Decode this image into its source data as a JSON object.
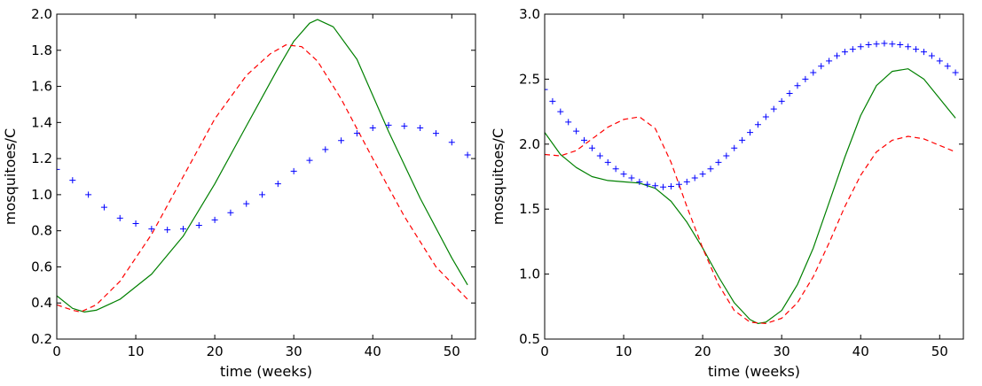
{
  "chart_data": [
    {
      "type": "line",
      "title": "",
      "xlabel": "time (weeks)",
      "ylabel": "mosquitoes/C",
      "xlim": [
        0,
        53
      ],
      "ylim": [
        0.2,
        2.0
      ],
      "xticks": [
        0,
        10,
        20,
        30,
        40,
        50
      ],
      "yticks": [
        0.2,
        0.4,
        0.6,
        0.8,
        1.0,
        1.2,
        1.4,
        1.6,
        1.8,
        2.0
      ],
      "xtick_labels": [
        "0",
        "10",
        "20",
        "30",
        "40",
        "50"
      ],
      "ytick_labels": [
        "0.2",
        "0.4",
        "0.6",
        "0.8",
        "1.0",
        "1.2",
        "1.4",
        "1.6",
        "1.8",
        "2.0"
      ],
      "series": [
        {
          "name": "solid",
          "style": "solid",
          "color": "#008000",
          "x": [
            0,
            2,
            3.5,
            5,
            8,
            12,
            16,
            20,
            24,
            28,
            30,
            32,
            33,
            35,
            38,
            42,
            46,
            50,
            52
          ],
          "y": [
            0.44,
            0.37,
            0.35,
            0.36,
            0.42,
            0.56,
            0.77,
            1.06,
            1.38,
            1.7,
            1.85,
            1.95,
            1.97,
            1.93,
            1.75,
            1.35,
            0.98,
            0.65,
            0.5
          ]
        },
        {
          "name": "dashed",
          "style": "dashed",
          "color": "#ff0000",
          "x": [
            0,
            2,
            3,
            5,
            8,
            12,
            16,
            20,
            24,
            27,
            29,
            31,
            33,
            36,
            40,
            44,
            48,
            52
          ],
          "y": [
            0.39,
            0.36,
            0.35,
            0.39,
            0.52,
            0.78,
            1.1,
            1.42,
            1.66,
            1.78,
            1.83,
            1.82,
            1.74,
            1.53,
            1.2,
            0.88,
            0.6,
            0.42
          ]
        },
        {
          "name": "plus markers",
          "style": "marker",
          "marker": "+",
          "color": "#0000ff",
          "x": [
            0,
            2,
            4,
            6,
            8,
            10,
            12,
            14,
            16,
            18,
            20,
            22,
            24,
            26,
            28,
            30,
            32,
            34,
            36,
            38,
            40,
            42,
            44,
            46,
            48,
            50,
            52
          ],
          "y": [
            1.14,
            1.08,
            1.0,
            0.93,
            0.87,
            0.84,
            0.81,
            0.805,
            0.81,
            0.83,
            0.86,
            0.9,
            0.95,
            1.0,
            1.06,
            1.13,
            1.19,
            1.25,
            1.3,
            1.34,
            1.37,
            1.385,
            1.38,
            1.37,
            1.34,
            1.29,
            1.22
          ]
        }
      ]
    },
    {
      "type": "line",
      "title": "",
      "xlabel": "time (weeks)",
      "ylabel": "mosquitoes/C",
      "xlim": [
        0,
        53
      ],
      "ylim": [
        0.5,
        3.0
      ],
      "xticks": [
        0,
        10,
        20,
        30,
        40,
        50
      ],
      "yticks": [
        0.5,
        1.0,
        1.5,
        2.0,
        2.5,
        3.0
      ],
      "xtick_labels": [
        "0",
        "10",
        "20",
        "30",
        "40",
        "50"
      ],
      "ytick_labels": [
        "0.5",
        "1.0",
        "1.5",
        "2.0",
        "2.5",
        "3.0"
      ],
      "series": [
        {
          "name": "solid",
          "style": "solid",
          "color": "#008000",
          "x": [
            0,
            2,
            4,
            6,
            8,
            10,
            12,
            14,
            16,
            18,
            20,
            22,
            24,
            26,
            27,
            28,
            30,
            32,
            34,
            36,
            38,
            40,
            42,
            44,
            46,
            48,
            50,
            52
          ],
          "y": [
            2.09,
            1.92,
            1.82,
            1.75,
            1.72,
            1.71,
            1.7,
            1.66,
            1.56,
            1.4,
            1.2,
            0.98,
            0.78,
            0.65,
            0.62,
            0.63,
            0.72,
            0.92,
            1.2,
            1.55,
            1.9,
            2.22,
            2.45,
            2.56,
            2.58,
            2.5,
            2.35,
            2.2
          ]
        },
        {
          "name": "dashed",
          "style": "dashed",
          "color": "#ff0000",
          "x": [
            0,
            2,
            4,
            6,
            8,
            10,
            12,
            14,
            16,
            18,
            20,
            22,
            24,
            26,
            28,
            30,
            32,
            34,
            36,
            38,
            40,
            42,
            44,
            46,
            48,
            50,
            52
          ],
          "y": [
            1.92,
            1.91,
            1.95,
            2.04,
            2.13,
            2.19,
            2.21,
            2.12,
            1.86,
            1.52,
            1.2,
            0.92,
            0.72,
            0.63,
            0.62,
            0.66,
            0.78,
            0.98,
            1.24,
            1.52,
            1.76,
            1.94,
            2.03,
            2.06,
            2.04,
            1.99,
            1.94
          ]
        },
        {
          "name": "plus markers",
          "style": "marker",
          "marker": "+",
          "color": "#0000ff",
          "x": [
            0,
            1,
            2,
            3,
            4,
            5,
            6,
            7,
            8,
            9,
            10,
            11,
            12,
            13,
            14,
            15,
            16,
            17,
            18,
            19,
            20,
            21,
            22,
            23,
            24,
            25,
            26,
            27,
            28,
            29,
            30,
            31,
            32,
            33,
            34,
            35,
            36,
            37,
            38,
            39,
            40,
            41,
            42,
            43,
            44,
            45,
            46,
            47,
            48,
            49,
            50,
            51,
            52
          ],
          "y": [
            2.42,
            2.33,
            2.25,
            2.17,
            2.1,
            2.03,
            1.97,
            1.91,
            1.86,
            1.81,
            1.77,
            1.74,
            1.71,
            1.69,
            1.68,
            1.67,
            1.675,
            1.69,
            1.71,
            1.74,
            1.77,
            1.81,
            1.86,
            1.91,
            1.97,
            2.03,
            2.09,
            2.15,
            2.21,
            2.27,
            2.33,
            2.39,
            2.45,
            2.5,
            2.55,
            2.6,
            2.64,
            2.68,
            2.71,
            2.73,
            2.75,
            2.765,
            2.77,
            2.775,
            2.77,
            2.765,
            2.75,
            2.73,
            2.71,
            2.68,
            2.64,
            2.6,
            2.55
          ]
        }
      ]
    }
  ]
}
